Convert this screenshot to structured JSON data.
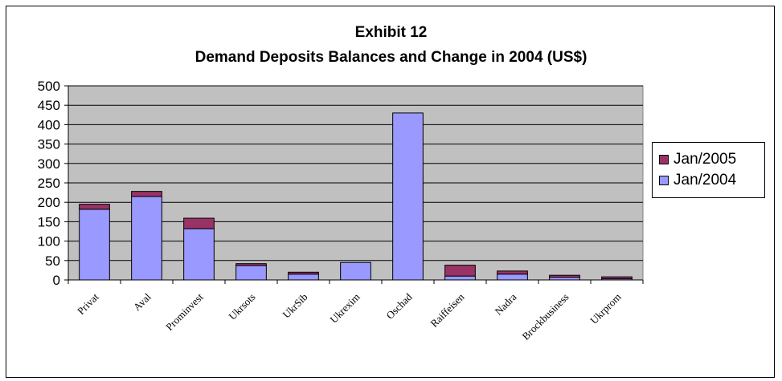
{
  "chart_data": {
    "type": "bar",
    "stacked": true,
    "title": "Exhibit 12",
    "subtitle": "Demand Deposits Balances and Change in 2004 (US$)",
    "categories": [
      "Privat",
      "Aval",
      "Prominvest",
      "Ukrsots",
      "UkrSib",
      "Ukrexim",
      "Oschad",
      "Raiffeisen",
      "Nadra",
      "Brockbusiness",
      "Ukrprom"
    ],
    "series": [
      {
        "name": "Jan/2004",
        "color": "#9999ff",
        "values": [
          182,
          215,
          132,
          37,
          15,
          45,
          430,
          10,
          15,
          7,
          3
        ]
      },
      {
        "name": "Jan/2005",
        "color": "#993366",
        "values": [
          13,
          13,
          27,
          5,
          5,
          0,
          0,
          28,
          8,
          5,
          5
        ]
      }
    ],
    "ylim": [
      0,
      500
    ],
    "yticks": [
      "0",
      "50",
      "100",
      "150",
      "200",
      "250",
      "300",
      "350",
      "400",
      "450",
      "500"
    ],
    "ytick_values": [
      0,
      50,
      100,
      150,
      200,
      250,
      300,
      350,
      400,
      450,
      500
    ],
    "grid": true,
    "plot_background": "#c0c0c0",
    "legend_position": "right",
    "legend_order": [
      "Jan/2005",
      "Jan/2004"
    ]
  }
}
